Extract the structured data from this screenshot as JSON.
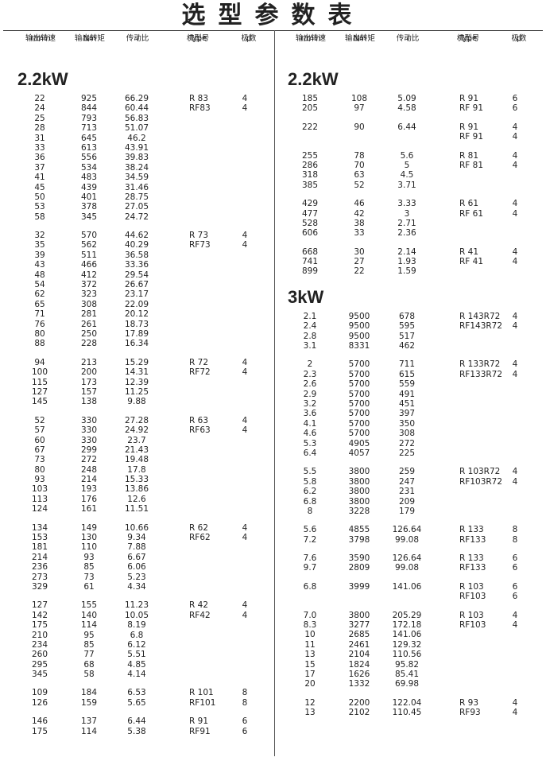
{
  "title": "选型参数表",
  "headers": [
    {
      "cn": "输出转速",
      "unit": "r/min"
    },
    {
      "cn": "输出转矩",
      "unit": "Nm"
    },
    {
      "cn": "传动比",
      "unit": "i"
    },
    {
      "cn": "机型号",
      "unit": "Type"
    },
    {
      "cn": "极数",
      "unit": "p"
    }
  ],
  "left": [
    {
      "heading": "2.2kW",
      "groups": [
        [
          {
            "n": "22",
            "t": "925",
            "i": "66.29",
            "type": "R 83",
            "p": "4"
          },
          {
            "n": "24",
            "t": "844",
            "i": "60.44",
            "type": "RF83",
            "p": "4"
          },
          {
            "n": "25",
            "t": "793",
            "i": "56.83"
          },
          {
            "n": "28",
            "t": "713",
            "i": "51.07"
          },
          {
            "n": "31",
            "t": "645",
            "i": "46.2"
          },
          {
            "n": "33",
            "t": "613",
            "i": "43.91"
          },
          {
            "n": "36",
            "t": "556",
            "i": "39.83"
          },
          {
            "n": "37",
            "t": "534",
            "i": "38.24"
          },
          {
            "n": "41",
            "t": "483",
            "i": "34.59"
          },
          {
            "n": "45",
            "t": "439",
            "i": "31.46"
          },
          {
            "n": "50",
            "t": "401",
            "i": "28.75"
          },
          {
            "n": "53",
            "t": "378",
            "i": "27.05"
          },
          {
            "n": "58",
            "t": "345",
            "i": "24.72"
          }
        ],
        [
          {
            "n": "32",
            "t": "570",
            "i": "44.62",
            "type": "R 73",
            "p": "4"
          },
          {
            "n": "35",
            "t": "562",
            "i": "40.29",
            "type": "RF73",
            "p": "4"
          },
          {
            "n": "39",
            "t": "511",
            "i": "36.58"
          },
          {
            "n": "43",
            "t": "466",
            "i": "33.36"
          },
          {
            "n": "48",
            "t": "412",
            "i": "29.54"
          },
          {
            "n": "54",
            "t": "372",
            "i": "26.67"
          },
          {
            "n": "62",
            "t": "323",
            "i": "23.17"
          },
          {
            "n": "65",
            "t": "308",
            "i": "22.09"
          },
          {
            "n": "71",
            "t": "281",
            "i": "20.12"
          },
          {
            "n": "76",
            "t": "261",
            "i": "18.73"
          },
          {
            "n": "80",
            "t": "250",
            "i": "17.89"
          },
          {
            "n": "88",
            "t": "228",
            "i": "16.34"
          }
        ],
        [
          {
            "n": "94",
            "t": "213",
            "i": "15.29",
            "type": "R 72",
            "p": "4"
          },
          {
            "n": "100",
            "t": "200",
            "i": "14.31",
            "type": "RF72",
            "p": "4"
          },
          {
            "n": "115",
            "t": "173",
            "i": "12.39"
          },
          {
            "n": "127",
            "t": "157",
            "i": "11.25"
          },
          {
            "n": "145",
            "t": "138",
            "i": "9.88"
          }
        ],
        [
          {
            "n": "52",
            "t": "330",
            "i": "27.28",
            "type": "R 63",
            "p": "4"
          },
          {
            "n": "57",
            "t": "330",
            "i": "24.92",
            "type": "RF63",
            "p": "4"
          },
          {
            "n": "60",
            "t": "330",
            "i": "23.7"
          },
          {
            "n": "67",
            "t": "299",
            "i": "21.43"
          },
          {
            "n": "73",
            "t": "272",
            "i": "19.48"
          },
          {
            "n": "80",
            "t": "248",
            "i": "17.8"
          },
          {
            "n": "93",
            "t": "214",
            "i": "15.33"
          },
          {
            "n": "103",
            "t": "193",
            "i": "13.86"
          },
          {
            "n": "113",
            "t": "176",
            "i": "12.6"
          },
          {
            "n": "124",
            "t": "161",
            "i": "11.51"
          }
        ],
        [
          {
            "n": "134",
            "t": "149",
            "i": "10.66",
            "type": "R 62",
            "p": "4"
          },
          {
            "n": "153",
            "t": "130",
            "i": "9.34",
            "type": "RF62",
            "p": "4"
          },
          {
            "n": "181",
            "t": "110",
            "i": "7.88"
          },
          {
            "n": "214",
            "t": "93",
            "i": "6.67"
          },
          {
            "n": "236",
            "t": "85",
            "i": "6.06"
          },
          {
            "n": "273",
            "t": "73",
            "i": "5.23"
          },
          {
            "n": "329",
            "t": "61",
            "i": "4.34"
          }
        ],
        [
          {
            "n": "127",
            "t": "155",
            "i": "11.23",
            "type": "R 42",
            "p": "4"
          },
          {
            "n": "142",
            "t": "140",
            "i": "10.05",
            "type": "RF42",
            "p": "4"
          },
          {
            "n": "175",
            "t": "114",
            "i": "8.19"
          },
          {
            "n": "210",
            "t": "95",
            "i": "6.8"
          },
          {
            "n": "234",
            "t": "85",
            "i": "6.12"
          },
          {
            "n": "260",
            "t": "77",
            "i": "5.51"
          },
          {
            "n": "295",
            "t": "68",
            "i": "4.85"
          },
          {
            "n": "345",
            "t": "58",
            "i": "4.14"
          }
        ],
        [
          {
            "n": "109",
            "t": "184",
            "i": "6.53",
            "type": "R 101",
            "p": "8"
          },
          {
            "n": "126",
            "t": "159",
            "i": "5.65",
            "type": "RF101",
            "p": "8"
          }
        ],
        [
          {
            "n": "146",
            "t": "137",
            "i": "6.44",
            "type": "R 91",
            "p": "6"
          },
          {
            "n": "175",
            "t": "114",
            "i": "5.38",
            "type": "RF91",
            "p": "6"
          }
        ]
      ]
    }
  ],
  "right": [
    {
      "heading": "2.2kW",
      "groups": [
        [
          {
            "n": "185",
            "t": "108",
            "i": "5.09",
            "type": "R 91",
            "p": "6"
          },
          {
            "n": "205",
            "t": "97",
            "i": "4.58",
            "type": "RF 91",
            "p": "6"
          }
        ],
        [
          {
            "n": "222",
            "t": "90",
            "i": "6.44",
            "type": "R 91",
            "p": "4"
          },
          {
            "type": "RF 91",
            "p": "4"
          }
        ],
        [
          {
            "n": "255",
            "t": "78",
            "i": "5.6",
            "type": "R 81",
            "p": "4"
          },
          {
            "n": "286",
            "t": "70",
            "i": "5",
            "type": "RF 81",
            "p": "4"
          },
          {
            "n": "318",
            "t": "63",
            "i": "4.5"
          },
          {
            "n": "385",
            "t": "52",
            "i": "3.71"
          }
        ],
        [
          {
            "n": "429",
            "t": "46",
            "i": "3.33",
            "type": "R 61",
            "p": "4"
          },
          {
            "n": "477",
            "t": "42",
            "i": "3",
            "type": "RF 61",
            "p": "4"
          },
          {
            "n": "528",
            "t": "38",
            "i": "2.71"
          },
          {
            "n": "606",
            "t": "33",
            "i": "2.36"
          }
        ],
        [
          {
            "n": "668",
            "t": "30",
            "i": "2.14",
            "type": "R 41",
            "p": "4"
          },
          {
            "n": "741",
            "t": "27",
            "i": "1.93",
            "type": "RF 41",
            "p": "4"
          },
          {
            "n": "899",
            "t": "22",
            "i": "1.59"
          }
        ]
      ]
    },
    {
      "heading": "3kW",
      "groups": [
        [
          {
            "n": "2.1",
            "t": "9500",
            "i": "678",
            "type": "R 143R72",
            "p": "4"
          },
          {
            "n": "2.4",
            "t": "9500",
            "i": "595",
            "type": "RF143R72",
            "p": "4"
          },
          {
            "n": "2.8",
            "t": "9500",
            "i": "517"
          },
          {
            "n": "3.1",
            "t": "8331",
            "i": "462"
          }
        ],
        [
          {
            "n": "2",
            "t": "5700",
            "i": "711",
            "type": "R 133R72",
            "p": "4"
          },
          {
            "n": "2.3",
            "t": "5700",
            "i": "615",
            "type": "RF133R72",
            "p": "4"
          },
          {
            "n": "2.6",
            "t": "5700",
            "i": "559"
          },
          {
            "n": "2.9",
            "t": "5700",
            "i": "491"
          },
          {
            "n": "3.2",
            "t": "5700",
            "i": "451"
          },
          {
            "n": "3.6",
            "t": "5700",
            "i": "397"
          },
          {
            "n": "4.1",
            "t": "5700",
            "i": "350"
          },
          {
            "n": "4.6",
            "t": "5700",
            "i": "308"
          },
          {
            "n": "5.3",
            "t": "4905",
            "i": "272"
          },
          {
            "n": "6.4",
            "t": "4057",
            "i": "225"
          }
        ],
        [
          {
            "n": "5.5",
            "t": "3800",
            "i": "259",
            "type": "R 103R72",
            "p": "4"
          },
          {
            "n": "5.8",
            "t": "3800",
            "i": "247",
            "type": "RF103R72",
            "p": "4"
          },
          {
            "n": "6.2",
            "t": "3800",
            "i": "231"
          },
          {
            "n": "6.8",
            "t": "3800",
            "i": "209"
          },
          {
            "n": "8",
            "t": "3228",
            "i": "179"
          }
        ],
        [
          {
            "n": "5.6",
            "t": "4855",
            "i": "126.64",
            "type": "R 133",
            "p": "8"
          },
          {
            "n": "7.2",
            "t": "3798",
            "i": "99.08",
            "type": "RF133",
            "p": "8"
          }
        ],
        [
          {
            "n": "7.6",
            "t": "3590",
            "i": "126.64",
            "type": "R 133",
            "p": "6"
          },
          {
            "n": "9.7",
            "t": "2809",
            "i": "99.08",
            "type": "RF133",
            "p": "6"
          }
        ],
        [
          {
            "n": "6.8",
            "t": "3999",
            "i": "141.06",
            "type": "R 103",
            "p": "6"
          },
          {
            "type": "RF103",
            "p": "6"
          }
        ],
        [
          {
            "n": "7.0",
            "t": "3800",
            "i": "205.29",
            "type": "R 103",
            "p": "4"
          },
          {
            "n": "8.3",
            "t": "3277",
            "i": "172.18",
            "type": "RF103",
            "p": "4"
          },
          {
            "n": "10",
            "t": "2685",
            "i": "141.06"
          },
          {
            "n": "11",
            "t": "2461",
            "i": "129.32"
          },
          {
            "n": "13",
            "t": "2104",
            "i": "110.56"
          },
          {
            "n": "15",
            "t": "1824",
            "i": "95.82"
          },
          {
            "n": "17",
            "t": "1626",
            "i": "85.41"
          },
          {
            "n": "20",
            "t": "1332",
            "i": "69.98"
          }
        ],
        [
          {
            "n": "12",
            "t": "2200",
            "i": "122.04",
            "type": "R 93",
            "p": "4"
          },
          {
            "n": "13",
            "t": "2102",
            "i": "110.45",
            "type": "RF93",
            "p": "4"
          }
        ]
      ]
    }
  ]
}
